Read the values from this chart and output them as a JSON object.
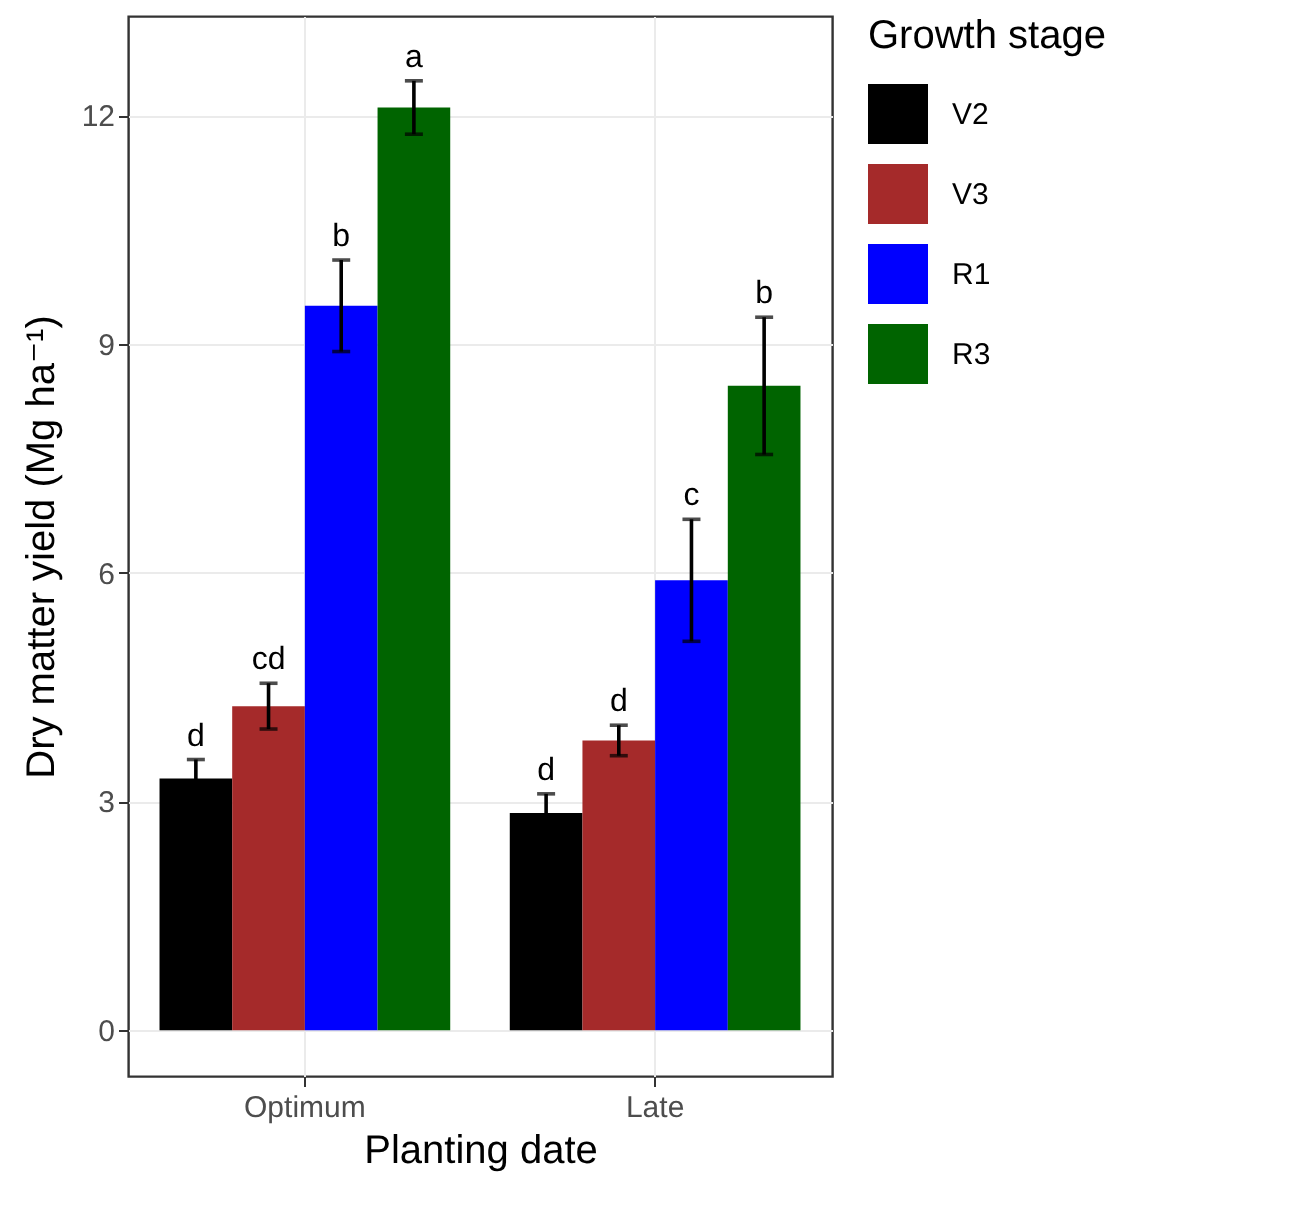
{
  "chart_data": {
    "type": "bar",
    "xlabel": "Planting date",
    "ylabel": "Dry matter yield (Mg ha⁻¹)",
    "legend_title": "Growth stage",
    "categories": [
      "Optimum",
      "Late"
    ],
    "series": [
      {
        "name": "V2",
        "color": "#000000",
        "values": [
          3.3,
          2.85
        ],
        "errors": [
          0.25,
          0.25
        ],
        "value_labels": [
          "d",
          "d"
        ]
      },
      {
        "name": "V3",
        "color": "#a52a2a",
        "values": [
          4.25,
          3.8
        ],
        "errors": [
          0.3,
          0.2
        ],
        "value_labels": [
          "cd",
          "d"
        ]
      },
      {
        "name": "R1",
        "color": "#0000ff",
        "values": [
          9.5,
          5.9
        ],
        "errors": [
          0.6,
          0.8
        ],
        "value_labels": [
          "b",
          "c"
        ]
      },
      {
        "name": "R3",
        "color": "#006400",
        "values": [
          12.1,
          8.45
        ],
        "errors": [
          0.35,
          0.9
        ],
        "value_labels": [
          "a",
          "b"
        ]
      }
    ],
    "ylim": [
      -0.6,
      13.3
    ],
    "yticks": [
      0,
      3,
      6,
      9,
      12
    ],
    "grid": true,
    "legend": "right"
  }
}
